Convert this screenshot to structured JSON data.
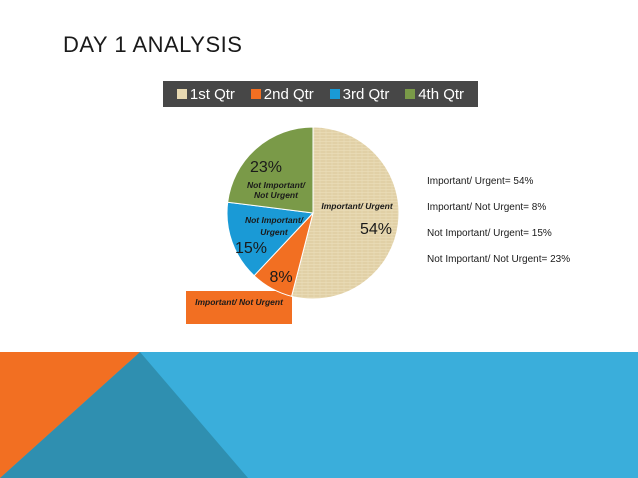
{
  "slide": {
    "title": "DAY 1 ANALYSIS",
    "legend": [
      {
        "label": "1st Qtr",
        "color": "#e8d9b2"
      },
      {
        "label": "2nd Qtr",
        "color": "#f26f22"
      },
      {
        "label": "3rd Qtr",
        "color": "#1a9ad6"
      },
      {
        "label": "4th Qtr",
        "color": "#7a9a48"
      }
    ],
    "side_list": [
      "Important/ Urgent= 54%",
      "Important/ Not Urgent= 8%",
      "Not Important/ Urgent= 15%",
      "Not Important/ Not Urgent= 23%"
    ],
    "footer_colors": {
      "blue": "#3aaedb",
      "teal": "#2f8fb0",
      "orange": "#f26f22"
    }
  },
  "chart_data": {
    "type": "pie",
    "slices": [
      {
        "value": 54,
        "value_label": "54%",
        "category_label": "Important/ Urgent",
        "color": "#e8d9b2"
      },
      {
        "value": 8,
        "value_label": "8%",
        "category_label": "Important/ Not Urgent",
        "color": "#f26f22"
      },
      {
        "value": 15,
        "value_label": "15%",
        "category_label": "Not Important/ Urgent",
        "color": "#1a9ad6"
      },
      {
        "value": 23,
        "value_label": "23%",
        "category_label": "Not Important/ Not Urgent",
        "color": "#7a9a48"
      }
    ],
    "legend_position": "top"
  }
}
